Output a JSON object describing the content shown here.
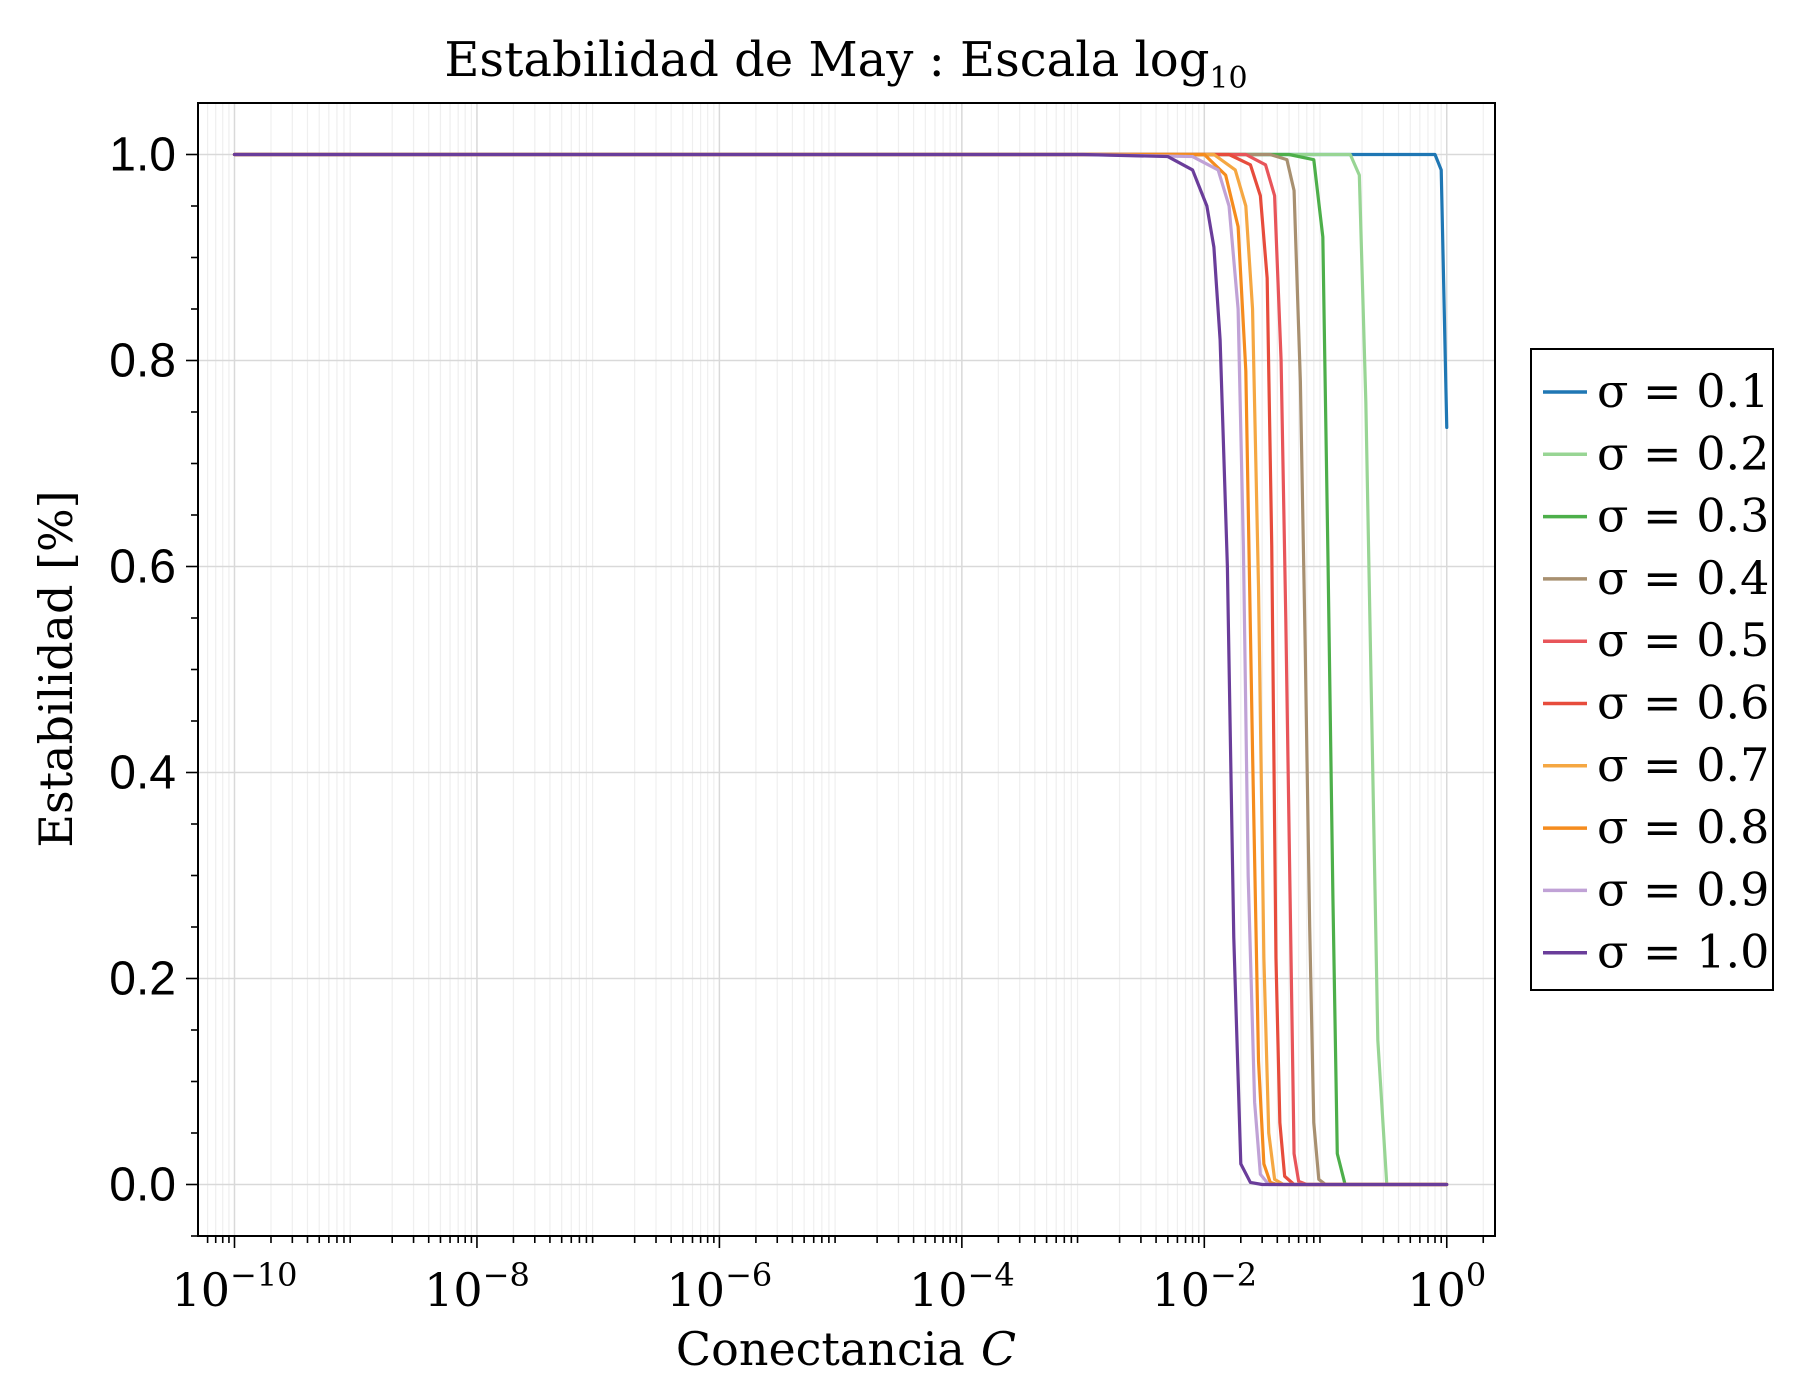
{
  "chart_data": {
    "type": "line",
    "title": "Estabilidad de May : Escala log",
    "title_subscript": "10",
    "xlabel": "Conectancia",
    "xlabel_var": "C",
    "ylabel": "Estabilidad [%]",
    "x_scale": "log10",
    "xlim": [
      5e-11,
      2.5
    ],
    "ylim": [
      -0.05,
      1.05
    ],
    "x_ticks": [
      {
        "exp": -10,
        "base": "10",
        "label": "−10"
      },
      {
        "exp": -8,
        "base": "10",
        "label": "−8"
      },
      {
        "exp": -6,
        "base": "10",
        "label": "−6"
      },
      {
        "exp": -4,
        "base": "10",
        "label": "−4"
      },
      {
        "exp": -2,
        "base": "10",
        "label": "−2"
      },
      {
        "exp": 0,
        "base": "10",
        "label": "0"
      }
    ],
    "y_ticks": [
      {
        "value": 0.0,
        "label": "0.0"
      },
      {
        "value": 0.2,
        "label": "0.2"
      },
      {
        "value": 0.4,
        "label": "0.4"
      },
      {
        "value": 0.6,
        "label": "0.6"
      },
      {
        "value": 0.8,
        "label": "0.8"
      },
      {
        "value": 1.0,
        "label": "1.0"
      }
    ],
    "grid": true,
    "legend_position": "right",
    "series": [
      {
        "name": "σ = 0.1",
        "color": "#1f77b4",
        "points": [
          [
            1e-10,
            1.0
          ],
          [
            0.001,
            1.0
          ],
          [
            0.1,
            1.0
          ],
          [
            0.8,
            1.0
          ],
          [
            0.9,
            0.985
          ],
          [
            1.0,
            0.735
          ]
        ]
      },
      {
        "name": "σ = 0.2",
        "color": "#98d594",
        "points": [
          [
            1e-10,
            1.0
          ],
          [
            0.001,
            1.0
          ],
          [
            0.1,
            1.0
          ],
          [
            0.16,
            1.0
          ],
          [
            0.19,
            0.98
          ],
          [
            0.215,
            0.76
          ],
          [
            0.24,
            0.46
          ],
          [
            0.27,
            0.14
          ],
          [
            0.32,
            0.0
          ],
          [
            1.0,
            0.0
          ]
        ]
      },
      {
        "name": "σ = 0.3",
        "color": "#4daf4a",
        "points": [
          [
            1e-10,
            1.0
          ],
          [
            0.001,
            1.0
          ],
          [
            0.05,
            1.0
          ],
          [
            0.08,
            0.995
          ],
          [
            0.095,
            0.92
          ],
          [
            0.105,
            0.6
          ],
          [
            0.115,
            0.28
          ],
          [
            0.125,
            0.03
          ],
          [
            0.145,
            0.0
          ],
          [
            1.0,
            0.0
          ]
        ]
      },
      {
        "name": "σ = 0.4",
        "color": "#a89070",
        "points": [
          [
            1e-10,
            1.0
          ],
          [
            0.001,
            1.0
          ],
          [
            0.035,
            1.0
          ],
          [
            0.048,
            0.995
          ],
          [
            0.055,
            0.965
          ],
          [
            0.062,
            0.78
          ],
          [
            0.068,
            0.52
          ],
          [
            0.074,
            0.25
          ],
          [
            0.08,
            0.06
          ],
          [
            0.088,
            0.005
          ],
          [
            0.1,
            0.0
          ],
          [
            1.0,
            0.0
          ]
        ]
      },
      {
        "name": "σ = 0.5",
        "color": "#e8555a",
        "points": [
          [
            1e-10,
            1.0
          ],
          [
            0.001,
            1.0
          ],
          [
            0.022,
            1.0
          ],
          [
            0.032,
            0.99
          ],
          [
            0.038,
            0.96
          ],
          [
            0.043,
            0.8
          ],
          [
            0.047,
            0.55
          ],
          [
            0.051,
            0.28
          ],
          [
            0.055,
            0.03
          ],
          [
            0.06,
            0.003
          ],
          [
            0.07,
            0.0
          ],
          [
            1.0,
            0.0
          ]
        ]
      },
      {
        "name": "σ = 0.6",
        "color": "#e74c3c",
        "points": [
          [
            1e-10,
            1.0
          ],
          [
            0.001,
            1.0
          ],
          [
            0.016,
            1.0
          ],
          [
            0.024,
            0.99
          ],
          [
            0.029,
            0.96
          ],
          [
            0.033,
            0.88
          ],
          [
            0.036,
            0.62
          ],
          [
            0.039,
            0.22
          ],
          [
            0.042,
            0.06
          ],
          [
            0.046,
            0.008
          ],
          [
            0.055,
            0.0
          ],
          [
            1.0,
            0.0
          ]
        ]
      },
      {
        "name": "σ = 0.7",
        "color": "#f5a742",
        "points": [
          [
            1e-10,
            1.0
          ],
          [
            0.001,
            1.0
          ],
          [
            0.012,
            1.0
          ],
          [
            0.018,
            0.985
          ],
          [
            0.022,
            0.95
          ],
          [
            0.025,
            0.85
          ],
          [
            0.028,
            0.58
          ],
          [
            0.031,
            0.22
          ],
          [
            0.034,
            0.05
          ],
          [
            0.038,
            0.005
          ],
          [
            0.045,
            0.0
          ],
          [
            1.0,
            0.0
          ]
        ]
      },
      {
        "name": "σ = 0.8",
        "color": "#f58c1e",
        "points": [
          [
            1e-10,
            1.0
          ],
          [
            0.001,
            1.0
          ],
          [
            0.01,
            1.0
          ],
          [
            0.015,
            0.98
          ],
          [
            0.019,
            0.93
          ],
          [
            0.022,
            0.79
          ],
          [
            0.025,
            0.42
          ],
          [
            0.028,
            0.12
          ],
          [
            0.031,
            0.02
          ],
          [
            0.035,
            0.002
          ],
          [
            0.04,
            0.0
          ],
          [
            1.0,
            0.0
          ]
        ]
      },
      {
        "name": "σ = 0.9",
        "color": "#c0a2d6",
        "points": [
          [
            1e-10,
            1.0
          ],
          [
            0.001,
            1.0
          ],
          [
            0.008,
            0.998
          ],
          [
            0.013,
            0.985
          ],
          [
            0.016,
            0.95
          ],
          [
            0.019,
            0.85
          ],
          [
            0.021,
            0.62
          ],
          [
            0.023,
            0.3
          ],
          [
            0.026,
            0.08
          ],
          [
            0.029,
            0.01
          ],
          [
            0.034,
            0.0
          ],
          [
            1.0,
            0.0
          ]
        ]
      },
      {
        "name": "σ = 1.0",
        "color": "#6a3d9a",
        "points": [
          [
            1e-10,
            1.0
          ],
          [
            0.001,
            1.0
          ],
          [
            0.005,
            0.998
          ],
          [
            0.008,
            0.985
          ],
          [
            0.0105,
            0.95
          ],
          [
            0.012,
            0.91
          ],
          [
            0.0135,
            0.82
          ],
          [
            0.0155,
            0.6
          ],
          [
            0.0175,
            0.24
          ],
          [
            0.02,
            0.02
          ],
          [
            0.024,
            0.002
          ],
          [
            0.03,
            0.0
          ],
          [
            1.0,
            0.0
          ]
        ]
      }
    ]
  }
}
